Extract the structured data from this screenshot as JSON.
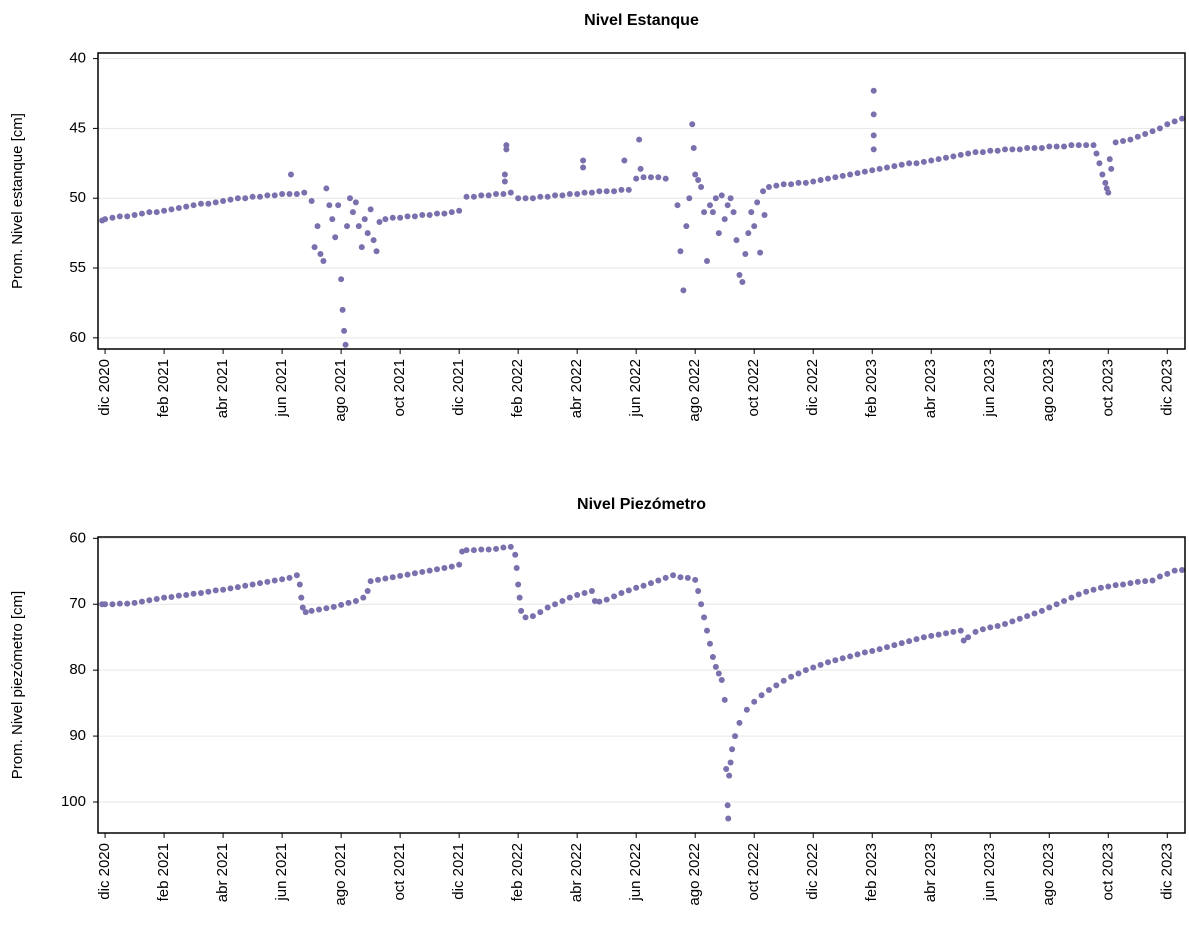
{
  "chart_data": [
    {
      "type": "scatter",
      "title": "Nivel Estanque",
      "ylabel": "Prom. Nivel estanque [cm]",
      "color": "#7b70ad",
      "grid": true,
      "y_reversed": true,
      "xlim": [
        -0.24,
        36.6
      ],
      "ylim": [
        39.6,
        60.8
      ],
      "yticks": [
        40,
        45,
        50,
        55,
        60
      ],
      "xticks": [
        {
          "value": 0,
          "label": "dic 2020"
        },
        {
          "value": 2,
          "label": "feb 2021"
        },
        {
          "value": 4,
          "label": "abr 2021"
        },
        {
          "value": 6,
          "label": "jun 2021"
        },
        {
          "value": 8,
          "label": "ago 2021"
        },
        {
          "value": 10,
          "label": "oct 2021"
        },
        {
          "value": 12,
          "label": "dic 2021"
        },
        {
          "value": 14,
          "label": "feb 2022"
        },
        {
          "value": 16,
          "label": "abr 2022"
        },
        {
          "value": 18,
          "label": "jun 2022"
        },
        {
          "value": 20,
          "label": "ago 2022"
        },
        {
          "value": 22,
          "label": "oct 2022"
        },
        {
          "value": 24,
          "label": "dic 2022"
        },
        {
          "value": 26,
          "label": "feb 2023"
        },
        {
          "value": 28,
          "label": "abr 2023"
        },
        {
          "value": 30,
          "label": "jun 2023"
        },
        {
          "value": 32,
          "label": "ago 2023"
        },
        {
          "value": 34,
          "label": "oct 2023"
        },
        {
          "value": 36,
          "label": "dic 2023"
        }
      ],
      "x": [
        -0.1,
        0,
        0.25,
        0.5,
        0.75,
        1,
        1.25,
        1.5,
        1.75,
        2,
        2.25,
        2.5,
        2.75,
        3,
        3.25,
        3.5,
        3.75,
        4,
        4.25,
        4.5,
        4.75,
        5,
        5.25,
        5.5,
        5.75,
        6,
        6.25,
        6.5,
        6.75,
        6.3,
        7,
        7.1,
        7.2,
        7.3,
        7.4,
        7.5,
        7.6,
        7.7,
        7.8,
        7.9,
        8,
        8.05,
        8.1,
        8.15,
        8.2,
        8.3,
        8.4,
        8.5,
        8.6,
        8.7,
        8.8,
        8.9,
        9,
        9.1,
        9.2,
        9.3,
        9.5,
        9.75,
        10,
        10.25,
        10.5,
        10.75,
        11,
        11.25,
        11.5,
        11.75,
        12,
        12.25,
        12.5,
        12.75,
        13,
        13.25,
        13.5,
        13.75,
        13.6,
        13.6,
        13.55,
        13.55,
        14,
        14.25,
        14.5,
        14.75,
        15,
        15.25,
        15.5,
        15.75,
        16,
        16.25,
        16.5,
        16.75,
        17,
        17.25,
        17.5,
        17.75,
        16.2,
        16.2,
        17.6,
        18,
        18.25,
        18.5,
        18.75,
        19,
        18.1,
        18.15,
        19.4,
        19.5,
        19.6,
        19.7,
        19.8,
        19.9,
        19.95,
        20,
        20.1,
        20.2,
        20.3,
        20.4,
        20.5,
        20.6,
        20.7,
        20.8,
        20.9,
        21,
        21.1,
        21.2,
        21.3,
        21.4,
        21.5,
        21.6,
        21.7,
        21.8,
        21.9,
        22,
        22.1,
        22.2,
        22.3,
        22.35,
        22.5,
        22.75,
        23,
        23.25,
        23.5,
        23.75,
        24,
        24.25,
        24.5,
        24.75,
        25,
        25.25,
        25.5,
        25.75,
        26,
        26.25,
        26.5,
        26.75,
        27,
        27.25,
        27.5,
        27.75,
        28,
        28.25,
        28.5,
        28.75,
        29,
        29.25,
        29.5,
        29.75,
        30,
        30.25,
        30.5,
        30.75,
        31,
        31.25,
        31.5,
        31.75,
        32,
        32.25,
        32.5,
        32.75,
        33,
        33.25,
        33.5,
        26.05,
        26.05,
        26.05,
        26.05,
        33.6,
        33.7,
        33.8,
        33.9,
        33.95,
        34,
        34.05,
        34.1,
        34.25,
        34.5,
        34.75,
        35,
        35.25,
        35.5,
        35.75,
        36,
        36.25,
        36.5
      ],
      "values": [
        51.6,
        51.5,
        51.4,
        51.3,
        51.3,
        51.2,
        51.1,
        51.0,
        51.0,
        50.9,
        50.8,
        50.7,
        50.6,
        50.5,
        50.4,
        50.4,
        50.3,
        50.2,
        50.1,
        50.0,
        50.0,
        49.9,
        49.9,
        49.8,
        49.8,
        49.7,
        49.7,
        49.7,
        49.6,
        48.3,
        50.2,
        53.5,
        52,
        54,
        54.5,
        49.3,
        50.5,
        51.5,
        52.8,
        50.5,
        55.8,
        58,
        59.5,
        60.5,
        52,
        50,
        51,
        50.3,
        52,
        53.5,
        51.5,
        52.5,
        50.8,
        53,
        53.8,
        51.7,
        51.5,
        51.4,
        51.4,
        51.3,
        51.3,
        51.2,
        51.2,
        51.1,
        51.1,
        51.0,
        50.9,
        49.9,
        49.9,
        49.8,
        49.8,
        49.7,
        49.7,
        49.6,
        46.2,
        46.5,
        48.3,
        48.8,
        50.0,
        50.0,
        50.0,
        49.9,
        49.9,
        49.8,
        49.8,
        49.7,
        49.7,
        49.6,
        49.6,
        49.5,
        49.5,
        49.5,
        49.4,
        49.4,
        47.3,
        47.8,
        47.3,
        48.6,
        48.5,
        48.5,
        48.5,
        48.6,
        45.8,
        47.9,
        50.5,
        53.8,
        56.6,
        52,
        50,
        44.7,
        46.4,
        48.3,
        48.7,
        49.2,
        51,
        54.5,
        50.5,
        51,
        50,
        52.5,
        49.8,
        51.5,
        50.5,
        50,
        51,
        53,
        55.5,
        56,
        54,
        52.5,
        51,
        52,
        50.3,
        53.9,
        49.5,
        51.2,
        49.2,
        49.1,
        49.0,
        49.0,
        48.9,
        48.9,
        48.8,
        48.7,
        48.6,
        48.5,
        48.4,
        48.3,
        48.2,
        48.1,
        48.0,
        47.9,
        47.8,
        47.7,
        47.6,
        47.5,
        47.5,
        47.4,
        47.3,
        47.2,
        47.1,
        47.0,
        46.9,
        46.8,
        46.7,
        46.7,
        46.6,
        46.6,
        46.5,
        46.5,
        46.5,
        46.4,
        46.4,
        46.4,
        46.3,
        46.3,
        46.3,
        46.2,
        46.2,
        46.2,
        46.2,
        42.3,
        44,
        45.5,
        46.5,
        46.8,
        47.5,
        48.3,
        48.9,
        49.3,
        49.6,
        47.2,
        47.9,
        46.0,
        45.9,
        45.8,
        45.6,
        45.4,
        45.2,
        45.0,
        44.7,
        44.5,
        44.3
      ]
    },
    {
      "type": "scatter",
      "title": "Nivel Piezómetro",
      "ylabel": "Prom. Nivel piezómetro [cm]",
      "color": "#7b70ad",
      "grid": true,
      "y_reversed": true,
      "xlim": [
        -0.24,
        36.6
      ],
      "ylim": [
        59.8,
        104.7
      ],
      "yticks": [
        60,
        70,
        80,
        90,
        100
      ],
      "xticks": [
        {
          "value": 0,
          "label": "dic 2020"
        },
        {
          "value": 2,
          "label": "feb 2021"
        },
        {
          "value": 4,
          "label": "abr 2021"
        },
        {
          "value": 6,
          "label": "jun 2021"
        },
        {
          "value": 8,
          "label": "ago 2021"
        },
        {
          "value": 10,
          "label": "oct 2021"
        },
        {
          "value": 12,
          "label": "dic 2021"
        },
        {
          "value": 14,
          "label": "feb 2022"
        },
        {
          "value": 16,
          "label": "abr 2022"
        },
        {
          "value": 18,
          "label": "jun 2022"
        },
        {
          "value": 20,
          "label": "ago 2022"
        },
        {
          "value": 22,
          "label": "oct 2022"
        },
        {
          "value": 24,
          "label": "dic 2022"
        },
        {
          "value": 26,
          "label": "feb 2023"
        },
        {
          "value": 28,
          "label": "abr 2023"
        },
        {
          "value": 30,
          "label": "jun 2023"
        },
        {
          "value": 32,
          "label": "ago 2023"
        },
        {
          "value": 34,
          "label": "oct 2023"
        },
        {
          "value": 36,
          "label": "dic 2023"
        }
      ],
      "x": [
        -0.1,
        0,
        0.25,
        0.5,
        0.75,
        1,
        1.25,
        1.5,
        1.75,
        2,
        2.25,
        2.5,
        2.75,
        3,
        3.25,
        3.5,
        3.75,
        4,
        4.25,
        4.5,
        4.75,
        5,
        5.25,
        5.5,
        5.75,
        6,
        6.25,
        6.5,
        6.6,
        6.65,
        6.7,
        6.8,
        7,
        7.25,
        7.5,
        7.75,
        8,
        8.25,
        8.5,
        8.75,
        8.9,
        9,
        9.25,
        9.5,
        9.75,
        10,
        10.25,
        10.5,
        10.75,
        11,
        11.25,
        11.5,
        11.75,
        12,
        12.1,
        12.25,
        12.5,
        12.75,
        13,
        13.25,
        13.5,
        13.75,
        13.9,
        13.95,
        14,
        14.05,
        14.1,
        14.25,
        14.5,
        14.75,
        15,
        15.25,
        15.5,
        15.75,
        16,
        16.25,
        16.5,
        16.6,
        16.75,
        17,
        17.25,
        17.5,
        17.75,
        18,
        18.25,
        18.5,
        18.75,
        19,
        19.25,
        19.5,
        19.75,
        20,
        20.1,
        20.2,
        20.3,
        20.4,
        20.5,
        20.6,
        20.7,
        20.8,
        20.9,
        21,
        21.05,
        21.1,
        21.12,
        21.15,
        21.2,
        21.25,
        21.35,
        21.5,
        21.75,
        22,
        22.25,
        22.5,
        22.75,
        23,
        23.25,
        23.5,
        23.75,
        24,
        24.25,
        24.5,
        24.75,
        25,
        25.25,
        25.5,
        25.75,
        26,
        26.25,
        26.5,
        26.75,
        27,
        27.25,
        27.5,
        27.75,
        28,
        28.25,
        28.5,
        28.75,
        29,
        29.1,
        29.25,
        29.5,
        29.75,
        30,
        30.25,
        30.5,
        30.75,
        31,
        31.25,
        31.5,
        31.75,
        32,
        32.25,
        32.5,
        32.75,
        33,
        33.25,
        33.5,
        33.75,
        34,
        34.25,
        34.5,
        34.75,
        35,
        35.25,
        35.5,
        35.75,
        36,
        36.25,
        36.5
      ],
      "values": [
        70.0,
        70.0,
        70.0,
        69.9,
        69.9,
        69.8,
        69.6,
        69.4,
        69.2,
        69.0,
        68.9,
        68.7,
        68.6,
        68.4,
        68.3,
        68.1,
        67.9,
        67.8,
        67.6,
        67.4,
        67.2,
        67.0,
        66.8,
        66.6,
        66.4,
        66.2,
        66.0,
        65.6,
        67,
        69,
        70.5,
        71.2,
        71.0,
        70.8,
        70.6,
        70.4,
        70.1,
        69.8,
        69.5,
        69.0,
        68,
        66.5,
        66.3,
        66.1,
        65.9,
        65.7,
        65.5,
        65.3,
        65.1,
        64.9,
        64.7,
        64.5,
        64.3,
        64.0,
        62.0,
        61.8,
        61.8,
        61.7,
        61.7,
        61.6,
        61.4,
        61.3,
        62.5,
        64.5,
        67,
        69,
        71.0,
        72.0,
        71.8,
        71.2,
        70.5,
        70.0,
        69.5,
        69.0,
        68.6,
        68.3,
        68.0,
        69.5,
        69.6,
        69.3,
        68.8,
        68.3,
        67.9,
        67.5,
        67.2,
        66.8,
        66.4,
        66.0,
        65.6,
        65.9,
        66.0,
        66.3,
        68,
        70,
        72,
        74,
        76,
        78,
        79.5,
        80.5,
        81.5,
        84.5,
        95,
        100.5,
        102.5,
        96,
        94,
        92,
        90,
        88,
        86,
        84.8,
        83.8,
        83.0,
        82.3,
        81.6,
        81.0,
        80.5,
        80.0,
        79.6,
        79.2,
        78.8,
        78.5,
        78.2,
        77.9,
        77.6,
        77.3,
        77.1,
        76.8,
        76.5,
        76.2,
        75.9,
        75.6,
        75.3,
        75.0,
        74.8,
        74.6,
        74.4,
        74.2,
        74.0,
        75.5,
        75.0,
        74.2,
        73.8,
        73.5,
        73.3,
        73.0,
        72.6,
        72.2,
        71.8,
        71.4,
        71.0,
        70.5,
        70.0,
        69.5,
        69.0,
        68.5,
        68.1,
        67.8,
        67.5,
        67.3,
        67.1,
        67.0,
        66.8,
        66.6,
        66.5,
        66.4,
        65.8,
        65.4,
        64.9,
        64.8
      ]
    }
  ]
}
